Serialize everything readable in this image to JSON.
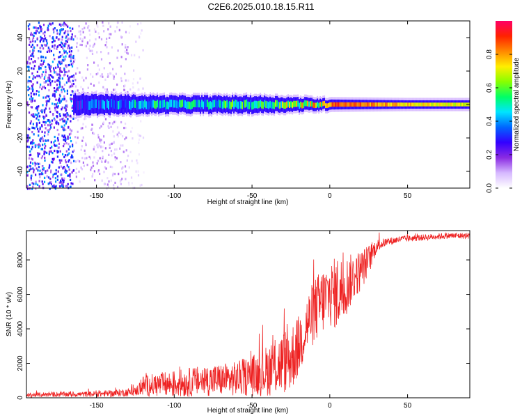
{
  "page_title": "C2E6.2025.010.18.15.R11",
  "chart_data": [
    {
      "type": "heatmap",
      "title": "C2E6.2025.010.18.15.R11",
      "xlabel": "Height of straight line (km)",
      "ylabel": "Frequency (Hz)",
      "xlim": [
        -195,
        90
      ],
      "ylim": [
        -50,
        50
      ],
      "xticks": [
        -150,
        -100,
        -50,
        0,
        50
      ],
      "yticks": [
        -40,
        -20,
        0,
        20,
        40
      ],
      "xtick_labels": [
        "-150",
        "-100",
        "-50",
        "0",
        "50"
      ],
      "ytick_labels": [
        "-40",
        "-20",
        "0",
        "20",
        "40"
      ],
      "colorbar": {
        "label": "Normalized spectral amplitude",
        "range": [
          0,
          1
        ],
        "ticks": [
          0.0,
          0.2,
          0.4,
          0.6,
          0.8
        ],
        "tick_labels": [
          "0.0",
          "0.2",
          "0.4",
          "0.6",
          "0.8"
        ],
        "colormap": [
          "#ffffff",
          "#d6b8ff",
          "#8a2be2",
          "#3300ff",
          "#0066ff",
          "#00e5ff",
          "#00ff66",
          "#88ff00",
          "#ffee00",
          "#ff8800",
          "#ff2200",
          "#ff0066"
        ]
      },
      "band": {
        "center_freq_hz": 0,
        "x_start_km": -165,
        "half_width_hz": [
          [
            -165,
            6
          ],
          [
            -100,
            5
          ],
          [
            -50,
            5
          ],
          [
            -20,
            4
          ],
          [
            0,
            3
          ],
          [
            50,
            2.5
          ],
          [
            90,
            2.5
          ]
        ],
        "peak_amplitude": [
          [
            -165,
            0.35
          ],
          [
            -120,
            0.55
          ],
          [
            -80,
            0.6
          ],
          [
            -50,
            0.65
          ],
          [
            -20,
            0.8
          ],
          [
            0,
            0.95
          ],
          [
            20,
            0.9
          ],
          [
            50,
            0.8
          ],
          [
            90,
            0.75
          ]
        ]
      },
      "noise_regions": [
        {
          "x_range_km": [
            -195,
            -165
          ],
          "amplitude": 0.35
        },
        {
          "x_range_km": [
            -165,
            -130
          ],
          "amplitude": 0.12
        },
        {
          "x_range_km": [
            -130,
            -120
          ],
          "amplitude": 0.06
        }
      ]
    },
    {
      "type": "line",
      "xlabel": "Height of straight line (km)",
      "ylabel": "SNR (10 * v/v)",
      "xlim": [
        -195,
        90
      ],
      "ylim": [
        0,
        9700
      ],
      "xticks": [
        -150,
        -100,
        -50,
        0,
        50
      ],
      "yticks": [
        0,
        2000,
        4000,
        6000,
        8000
      ],
      "xtick_labels": [
        "-150",
        "-100",
        "-50",
        "0",
        "50"
      ],
      "ytick_labels": [
        "0",
        "2000",
        "4000",
        "6000",
        "8000"
      ],
      "series": [
        {
          "name": "SNR",
          "color": "#ee2222",
          "envelope_km": [
            -195,
            -180,
            -160,
            -140,
            -125,
            -120,
            -100,
            -80,
            -60,
            -45,
            -35,
            -25,
            -20,
            -15,
            -10,
            -5,
            0,
            5,
            10,
            15,
            20,
            25,
            30,
            35,
            45,
            60,
            75,
            90
          ],
          "baseline": [
            150,
            200,
            200,
            250,
            350,
            700,
            800,
            1000,
            1100,
            1400,
            1800,
            2300,
            3000,
            4200,
            5000,
            5600,
            6000,
            6100,
            6400,
            7000,
            7400,
            8000,
            8800,
            9000,
            9200,
            9300,
            9400,
            9400
          ],
          "noise_amplitude": [
            120,
            150,
            150,
            200,
            250,
            600,
            800,
            900,
            1000,
            1300,
            1700,
            2000,
            1800,
            1800,
            1900,
            2000,
            1900,
            2200,
            1800,
            1400,
            1200,
            900,
            400,
            250,
            200,
            180,
            180,
            180
          ]
        }
      ]
    }
  ]
}
